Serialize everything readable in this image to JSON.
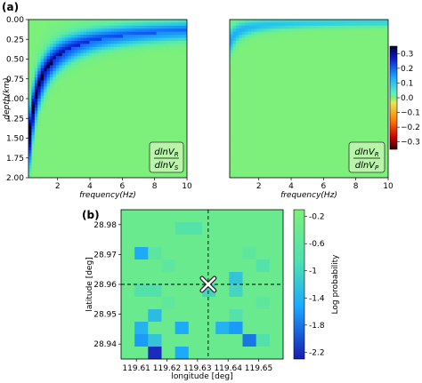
{
  "panel_labels": {
    "a": "(a)",
    "b": "(b)"
  },
  "chart_data": [
    {
      "type": "heatmap",
      "ylabel": "depth(km)",
      "xlabel": "frequency(Hz)",
      "xlim": [
        0.2,
        10
      ],
      "ylim": [
        2.0,
        0.0
      ],
      "x_ticks": [
        "2",
        "4",
        "6",
        "8",
        "10"
      ],
      "y_ticks": [
        "0.00",
        "0.25",
        "0.50",
        "0.75",
        "1.00",
        "1.25",
        "1.50",
        "1.75",
        "2.00"
      ],
      "annotation": {
        "numerator": "dlnV",
        "num_sub": "R",
        "denominator": "dlnV",
        "den_sub": "S"
      },
      "peak_value": 0.3
    },
    {
      "type": "heatmap",
      "xlabel": "frequency(Hz)",
      "xlim": [
        0.2,
        10
      ],
      "ylim": [
        2.0,
        0.0
      ],
      "x_ticks": [
        "2",
        "4",
        "6",
        "8",
        "10"
      ],
      "annotation": {
        "numerator": "dlnV",
        "num_sub": "R",
        "denominator": "dlnV",
        "den_sub": "P"
      },
      "peak_value": 0.12,
      "colorbar": {
        "range": [
          -0.3,
          0.3
        ],
        "ticks": [
          "0.3",
          "0.2",
          "0.1",
          "0.0",
          "−0.1",
          "−0.2",
          "−0.3"
        ]
      }
    },
    {
      "type": "heatmap",
      "xlabel": "longitude [deg]",
      "ylabel": "latitude [deg]",
      "xlim": [
        119.605,
        119.658
      ],
      "ylim": [
        28.935,
        28.985
      ],
      "x_ticks": [
        "119.61",
        "119.62",
        "119.63",
        "119.64",
        "119.65"
      ],
      "y_ticks": [
        "28.98",
        "28.97",
        "28.96",
        "28.95",
        "28.94"
      ],
      "marker": {
        "lon": 119.6335,
        "lat": 28.96
      },
      "grid_cols": 12,
      "grid_rows": 12,
      "base_value": -0.4,
      "cells": [
        {
          "col": 4,
          "row": 1,
          "value": -0.75
        },
        {
          "col": 5,
          "row": 1,
          "value": -0.75
        },
        {
          "col": 1,
          "row": 3,
          "value": -1.5
        },
        {
          "col": 2,
          "row": 3,
          "value": -0.65
        },
        {
          "col": 9,
          "row": 3,
          "value": -0.6
        },
        {
          "col": 10,
          "row": 4,
          "value": -0.75
        },
        {
          "col": 3,
          "row": 4,
          "value": -0.6
        },
        {
          "col": 8,
          "row": 5,
          "value": -1.2
        },
        {
          "col": 1,
          "row": 6,
          "value": -0.8
        },
        {
          "col": 2,
          "row": 6,
          "value": -0.8
        },
        {
          "col": 8,
          "row": 6,
          "value": -1.0
        },
        {
          "col": 6,
          "row": 6,
          "value": -1.0
        },
        {
          "col": 3,
          "row": 7,
          "value": -0.55
        },
        {
          "col": 10,
          "row": 7,
          "value": -0.6
        },
        {
          "col": 2,
          "row": 8,
          "value": -1.3
        },
        {
          "col": 8,
          "row": 8,
          "value": -0.75
        },
        {
          "col": 1,
          "row": 9,
          "value": -1.4
        },
        {
          "col": 4,
          "row": 9,
          "value": -1.5
        },
        {
          "col": 7,
          "row": 9,
          "value": -1.4
        },
        {
          "col": 8,
          "row": 9,
          "value": -1.6
        },
        {
          "col": 1,
          "row": 10,
          "value": -1.6
        },
        {
          "col": 2,
          "row": 10,
          "value": -1.2
        },
        {
          "col": 9,
          "row": 10,
          "value": -1.8
        },
        {
          "col": 10,
          "row": 10,
          "value": -0.8
        },
        {
          "col": 2,
          "row": 11,
          "value": -2.2
        },
        {
          "col": 4,
          "row": 11,
          "value": -1.5
        }
      ],
      "colorbar": {
        "range": [
          -2.3,
          -0.1
        ],
        "label": "Log probability",
        "ticks": [
          "-0.2",
          "-0.6",
          "-1",
          "-1.4",
          "-1.8",
          "-2.2"
        ]
      }
    }
  ]
}
